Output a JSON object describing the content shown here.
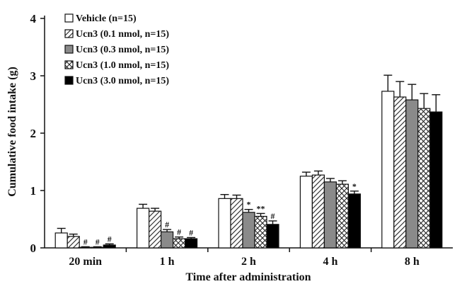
{
  "chart_data": {
    "type": "bar",
    "title": "",
    "xlabel": "Time after administration",
    "ylabel": "Cumulative food intake (g)",
    "ylim": [
      0,
      4
    ],
    "yticks": [
      0,
      1,
      2,
      3,
      4
    ],
    "categories": [
      "20 min",
      "1 h",
      "2 h",
      "4 h",
      "8 h"
    ],
    "legend_position": "top-left",
    "error_bars": "one-sided (upper)",
    "series": [
      {
        "name": "Vehicle (n=15)",
        "pattern": "white",
        "color": "#ffffff",
        "values": [
          0.26,
          0.69,
          0.86,
          1.25,
          2.73
        ],
        "errors": [
          0.08,
          0.07,
          0.07,
          0.07,
          0.28
        ],
        "annotations": [
          "",
          "",
          "",
          "",
          ""
        ]
      },
      {
        "name": "Ucn3 (0.1 nmol, n=15)",
        "pattern": "diagonal-hatch",
        "color": "#222222",
        "values": [
          0.2,
          0.64,
          0.86,
          1.27,
          2.63
        ],
        "errors": [
          0.04,
          0.05,
          0.06,
          0.07,
          0.27
        ],
        "annotations": [
          "",
          "",
          "",
          "",
          ""
        ]
      },
      {
        "name": "Ucn3 (0.3 nmol, n=15)",
        "pattern": "gray",
        "color": "#8a8a8a",
        "values": [
          0.01,
          0.28,
          0.62,
          1.15,
          2.58
        ],
        "errors": [
          0.01,
          0.04,
          0.05,
          0.06,
          0.27
        ],
        "annotations": [
          "#",
          "#",
          "*",
          "",
          ""
        ]
      },
      {
        "name": "Ucn3 (1.0 nmol, n=15)",
        "pattern": "crosshatch",
        "color": "#222222",
        "values": [
          0.01,
          0.16,
          0.55,
          1.11,
          2.43
        ],
        "errors": [
          0.01,
          0.03,
          0.05,
          0.06,
          0.26
        ],
        "annotations": [
          "#",
          "#",
          "**",
          "",
          ""
        ]
      },
      {
        "name": "Ucn3 (3.0 nmol, n=15)",
        "pattern": "black",
        "color": "#000000",
        "values": [
          0.05,
          0.16,
          0.41,
          0.94,
          2.37
        ],
        "errors": [
          0.02,
          0.02,
          0.06,
          0.05,
          0.3
        ],
        "annotations": [
          "#",
          "#",
          "#",
          "*",
          ""
        ]
      }
    ]
  }
}
